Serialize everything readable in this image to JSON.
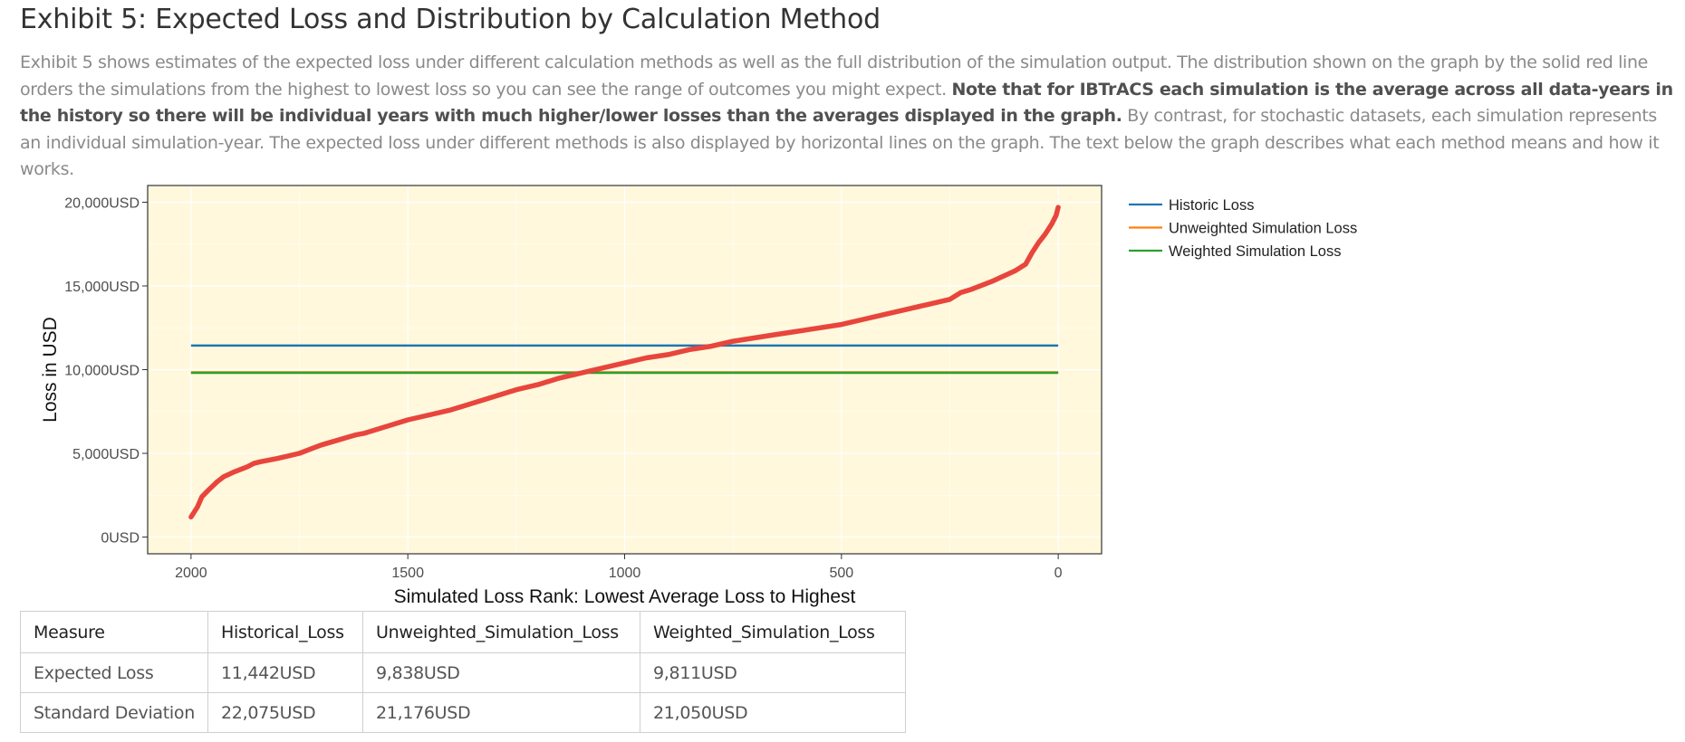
{
  "page": {
    "title": "Exhibit 5: Expected Loss and Distribution by Calculation Method",
    "intro_part1": "Exhibit 5 shows estimates of the expected loss under different calculation methods as well as the full distribution of the simulation output. The distribution shown on the graph by the solid red line orders the simulations from the highest to lowest loss so you can see the range of outcomes you might expect. ",
    "intro_bold": "Note that for IBTrACS each simulation is the average across all data-years in the history so there will be individual years with much higher/lower losses than the averages displayed in the graph.",
    "intro_part2": " By contrast, for stochastic datasets, each simulation represents an individual simulation-year. The expected loss under different methods is also displayed by horizontal lines on the graph. The text below the graph describes what each method means and how it works."
  },
  "chart_data": {
    "type": "line",
    "xlabel": "Simulated Loss Rank: Lowest Average Loss to Highest",
    "ylabel": "Loss in USD",
    "xlim": [
      2100,
      -100
    ],
    "ylim": [
      -1000,
      21000
    ],
    "x_reversed": true,
    "x_ticks": [
      2000,
      1500,
      1000,
      500,
      0
    ],
    "y_ticks": [
      0,
      5000,
      10000,
      15000,
      20000
    ],
    "y_tick_labels": [
      "0USD",
      "5,000USD",
      "10,000USD",
      "15,000USD",
      "20,000USD"
    ],
    "grid": true,
    "background": "#fff8dc",
    "legend_position": "right",
    "distribution": {
      "color": "#e8453c",
      "x": [
        2000,
        1985,
        1975,
        1960,
        1940,
        1925,
        1900,
        1870,
        1855,
        1840,
        1800,
        1750,
        1720,
        1700,
        1660,
        1620,
        1600,
        1550,
        1500,
        1450,
        1400,
        1350,
        1300,
        1250,
        1200,
        1150,
        1100,
        1050,
        1000,
        950,
        900,
        850,
        800,
        750,
        700,
        650,
        600,
        550,
        500,
        450,
        400,
        350,
        300,
        250,
        225,
        200,
        150,
        100,
        75,
        60,
        45,
        30,
        15,
        5,
        0
      ],
      "y": [
        1200,
        1800,
        2400,
        2800,
        3300,
        3600,
        3900,
        4200,
        4400,
        4500,
        4700,
        5000,
        5300,
        5500,
        5800,
        6100,
        6200,
        6600,
        7000,
        7300,
        7600,
        8000,
        8400,
        8800,
        9100,
        9500,
        9800,
        10100,
        10400,
        10700,
        10900,
        11200,
        11400,
        11700,
        11900,
        12100,
        12300,
        12500,
        12700,
        13000,
        13300,
        13600,
        13900,
        14200,
        14600,
        14800,
        15300,
        15900,
        16300,
        17000,
        17600,
        18100,
        18700,
        19200,
        19700
      ]
    },
    "series": [
      {
        "name": "Historic Loss",
        "value": 11442,
        "color": "#1f77b4",
        "x": [
          2000,
          0
        ]
      },
      {
        "name": "Unweighted Simulation Loss",
        "value": 9838,
        "color": "#ff7f0e",
        "x": [
          2000,
          0
        ]
      },
      {
        "name": "Weighted Simulation Loss",
        "value": 9811,
        "color": "#2ca02c",
        "x": [
          2000,
          0
        ]
      }
    ]
  },
  "table": {
    "headers": [
      "Measure",
      "Historical_Loss",
      "Unweighted_Simulation_Loss",
      "Weighted_Simulation_Loss"
    ],
    "rows": [
      [
        "Expected Loss",
        "11,442USD",
        "9,838USD",
        "9,811USD"
      ],
      [
        "Standard Deviation",
        "22,075USD",
        "21,176USD",
        "21,050USD"
      ]
    ]
  }
}
